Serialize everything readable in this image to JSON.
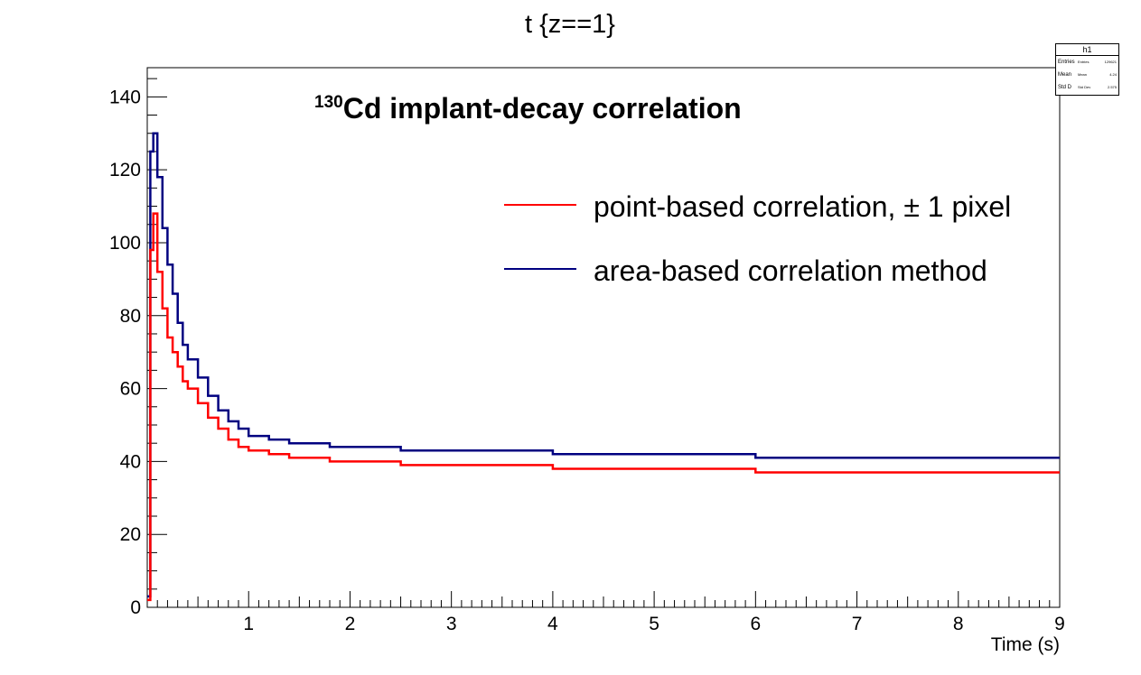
{
  "chart_data": {
    "type": "line",
    "title": "t {z==1}",
    "annotation": {
      "superscript": "130",
      "text": "Cd implant-decay correlation"
    },
    "xlabel": "Time (s)",
    "ylabel": "",
    "xlim": [
      0,
      9
    ],
    "ylim": [
      0,
      148
    ],
    "x_ticks": [
      1,
      2,
      3,
      4,
      5,
      6,
      7,
      8,
      9
    ],
    "y_ticks": [
      0,
      20,
      40,
      60,
      80,
      100,
      120,
      140
    ],
    "y_tick_labels": [
      "0",
      "20",
      "40",
      "60",
      "80",
      "100",
      "120",
      "140"
    ],
    "x_tick_labels": [
      "1",
      "2",
      "3",
      "4",
      "5",
      "6",
      "7",
      "8",
      "9"
    ],
    "grid": false,
    "legend_placement": "upper-right",
    "x": [
      0.0,
      0.03,
      0.06,
      0.1,
      0.15,
      0.2,
      0.25,
      0.3,
      0.35,
      0.4,
      0.5,
      0.6,
      0.7,
      0.8,
      0.9,
      1.0,
      1.2,
      1.4,
      1.6,
      1.8,
      2.0,
      2.5,
      3.0,
      3.5,
      4.0,
      4.5,
      5.0,
      5.5,
      6.0,
      6.5,
      7.0,
      7.5,
      8.0,
      8.5,
      9.0
    ],
    "series": [
      {
        "name": "point-based correlation, ± 1 pixel",
        "color": "#ff0000",
        "values": [
          2,
          98,
          108,
          92,
          82,
          74,
          70,
          66,
          62,
          60,
          56,
          52,
          49,
          46,
          44,
          43,
          42,
          41,
          41,
          40,
          40,
          39,
          39,
          39,
          38,
          38,
          38,
          38,
          37,
          37,
          37,
          37,
          37,
          37,
          37
        ]
      },
      {
        "name": "area-based correlation method",
        "color": "#000080",
        "values": [
          3,
          125,
          130,
          118,
          104,
          94,
          86,
          78,
          72,
          68,
          63,
          58,
          54,
          51,
          49,
          47,
          46,
          45,
          45,
          44,
          44,
          43,
          43,
          43,
          42,
          42,
          42,
          42,
          41,
          41,
          41,
          41,
          41,
          41,
          41
        ]
      }
    ]
  },
  "stats": {
    "title": "h1",
    "rows": [
      {
        "label": "Entries",
        "label2": "Entries",
        "value": "129621"
      },
      {
        "label": "Mean",
        "label2": "Mean",
        "value": "4.24"
      },
      {
        "label": "Std D",
        "label2": "Std Dev",
        "value": "2.575"
      }
    ]
  }
}
